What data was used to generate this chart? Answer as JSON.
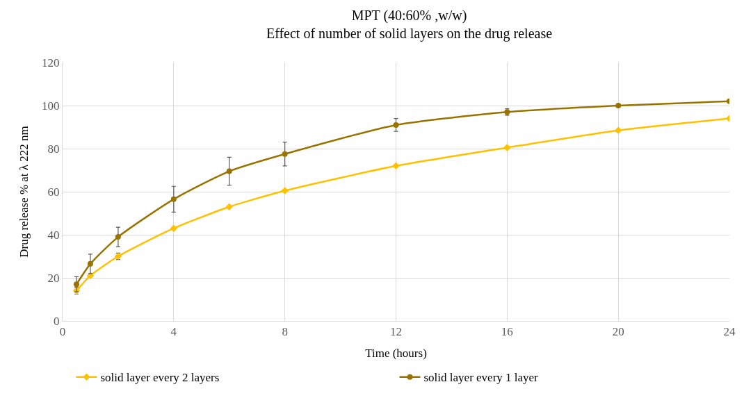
{
  "chart_data": {
    "type": "line",
    "title": "MPT (40:60% ,w/w)",
    "subtitle": "Effect of number of solid layers on the drug release",
    "xlabel": "Time (hours)",
    "ylabel": "Drug release % at λ 222 nm",
    "x": [
      0.5,
      1,
      2,
      4,
      6,
      8,
      12,
      16,
      20,
      24
    ],
    "series": [
      {
        "name": "solid layer every 2 layers",
        "color": "#ffc000",
        "marker": "diamond",
        "values": [
          14,
          21,
          30,
          43,
          53,
          60.5,
          72,
          80.5,
          88.5,
          94
        ],
        "errors": [
          1.5,
          null,
          1.5,
          null,
          null,
          null,
          null,
          null,
          null,
          null
        ]
      },
      {
        "name": "solid layer every 1 layer",
        "color": "#997300",
        "marker": "circle",
        "values": [
          17,
          26.5,
          39,
          56.5,
          69.5,
          77.5,
          91,
          97,
          100,
          102
        ],
        "errors": [
          3.5,
          4.5,
          4.5,
          6,
          6.5,
          5.5,
          3,
          1.5,
          null,
          null
        ]
      }
    ],
    "xlim": [
      0,
      24
    ],
    "xticks": [
      0,
      4,
      8,
      12,
      16,
      20,
      24
    ],
    "ylim": [
      0,
      120
    ],
    "yticks": [
      0,
      20,
      40,
      60,
      80,
      100,
      120
    ],
    "grid": true,
    "legend": "bottom",
    "line_style": "solid"
  }
}
